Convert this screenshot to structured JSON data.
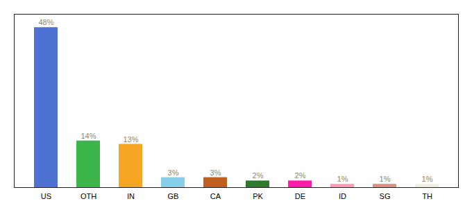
{
  "chart_data": {
    "type": "bar",
    "categories": [
      "US",
      "OTH",
      "IN",
      "GB",
      "CA",
      "PK",
      "DE",
      "ID",
      "SG",
      "TH"
    ],
    "values": [
      48,
      14,
      13,
      3,
      3,
      2,
      2,
      1,
      1,
      1
    ],
    "value_labels": [
      "48%",
      "14%",
      "13%",
      "3%",
      "3%",
      "2%",
      "2%",
      "1%",
      "1%",
      "1%"
    ],
    "colors": [
      "#4d72d4",
      "#3cb54a",
      "#f5a623",
      "#87ceeb",
      "#c06020",
      "#2d7a2d",
      "#ff1aaa",
      "#ff9ab0",
      "#e09080",
      "#f0eedc"
    ],
    "ylim": [
      0,
      52
    ],
    "grid": false,
    "data_labels": true,
    "tick_labels": "x"
  }
}
